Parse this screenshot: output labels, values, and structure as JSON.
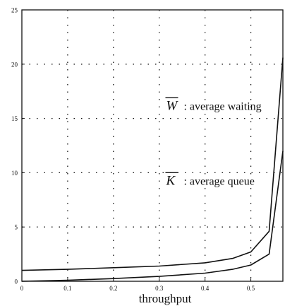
{
  "chart_data": {
    "type": "line",
    "title": "",
    "xlabel": "throughput",
    "ylabel": "",
    "xlim": [
      0,
      0.57
    ],
    "ylim": [
      0,
      25
    ],
    "xticks": [
      0,
      0.1,
      0.2,
      0.3,
      0.4,
      0.5
    ],
    "xtick_labels": [
      "0",
      "0.1",
      "0.2",
      "0.3",
      "0.4",
      "0.5"
    ],
    "yticks": [
      0,
      5,
      10,
      15,
      20,
      25
    ],
    "ytick_labels": [
      "0",
      "5",
      "10",
      "15",
      "20",
      "25"
    ],
    "grid": true,
    "series": [
      {
        "x": [
          0,
          0.1,
          0.2,
          0.3,
          0.4,
          0.46,
          0.5,
          0.54,
          0.57
        ],
        "y": [
          1.0,
          1.1,
          1.25,
          1.4,
          1.7,
          2.1,
          2.7,
          4.6,
          20.6
        ]
      },
      {
        "x": [
          0,
          0.1,
          0.2,
          0.3,
          0.4,
          0.46,
          0.5,
          0.54,
          0.57
        ],
        "y": [
          0,
          0.1,
          0.25,
          0.45,
          0.75,
          1.1,
          1.5,
          2.5,
          12.0
        ]
      }
    ],
    "annotations": [
      {
        "symbol": "W",
        "text": ": average waiting",
        "x": 0.315,
        "y": 15.8
      },
      {
        "symbol": "K",
        "text": ": average queue",
        "x": 0.315,
        "y": 8.9
      }
    ],
    "line_color": "#111111",
    "grid_color": "#111111"
  }
}
